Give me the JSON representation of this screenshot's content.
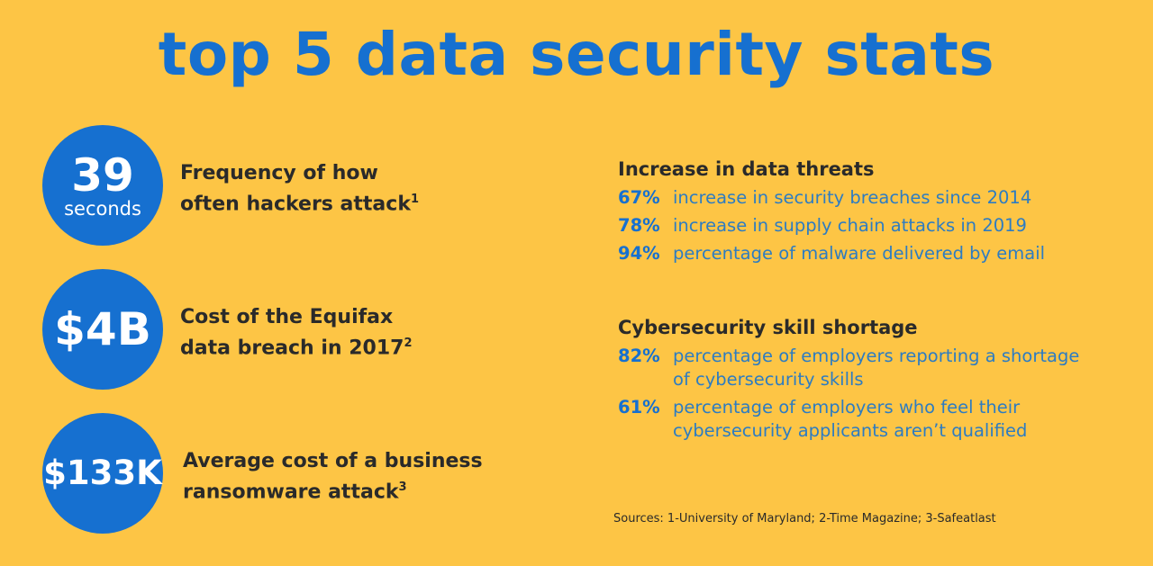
{
  "title": "top 5 data security stats",
  "stats": [
    {
      "value": "39",
      "unit": "seconds",
      "lines": [
        "Frequency of how",
        "often hackers attack"
      ],
      "note": "1"
    },
    {
      "value": "$4B",
      "lines": [
        "Cost of the Equifax",
        "data breach in 2017"
      ],
      "note": "2"
    },
    {
      "value": "$133K",
      "lines": [
        "Average cost of a business",
        "ransomware attack"
      ],
      "note": "3"
    }
  ],
  "sections": [
    {
      "heading": "Increase in data threats",
      "items": [
        {
          "figure": "67%",
          "text": "increase in security breaches since 2014"
        },
        {
          "figure": "78%",
          "text": "increase in supply chain attacks in 2019"
        },
        {
          "figure": "94%",
          "text": "percentage of malware delivered by email"
        }
      ]
    },
    {
      "heading": "Cybersecurity skill shortage",
      "items": [
        {
          "figure": "82%",
          "text": "percentage of employers reporting a shortage of cybersecurity skills"
        },
        {
          "figure": "61%",
          "text": "percentage of employers who feel their cybersecurity applicants aren’t qualified"
        }
      ]
    }
  ],
  "sources": "Sources: 1-University of Maryland; 2-Time Magazine; 3-Safeatlast"
}
